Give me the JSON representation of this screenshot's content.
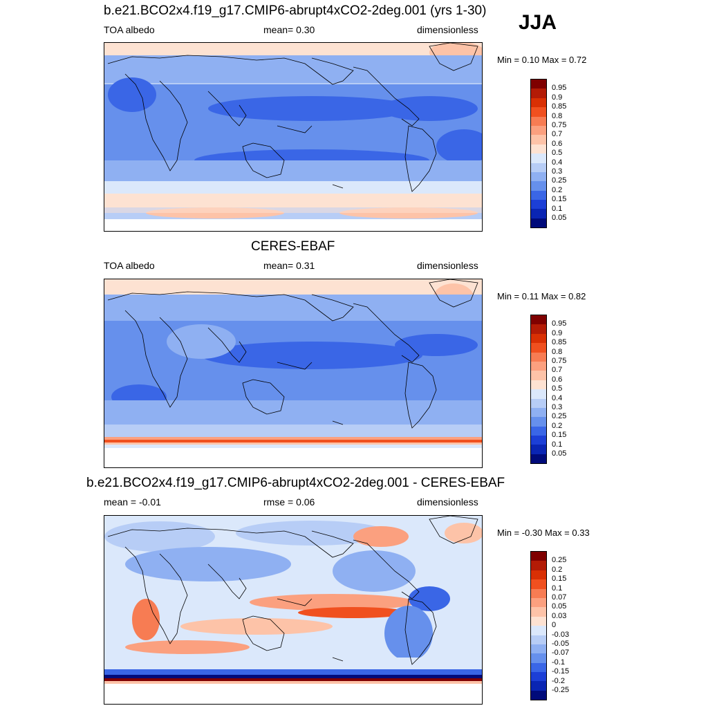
{
  "season": "JJA",
  "panels": [
    {
      "title": "b.e21.BCO2x4.f19_g17.CMIP6-abrupt4xCO2-2deg.001 (yrs 1-30)",
      "left_label": "TOA albedo",
      "center_label": "mean=   0.30",
      "right_label": "dimensionless",
      "minmax": "Min =   0.10 Max =   0.72",
      "field": "model"
    },
    {
      "title": "CERES-EBAF",
      "left_label": "TOA albedo",
      "center_label": "mean=   0.31",
      "right_label": "dimensionless",
      "minmax": "Min =   0.11 Max =   0.82",
      "field": "obs"
    },
    {
      "title": "b.e21.BCO2x4.f19_g17.CMIP6-abrupt4xCO2-2deg.001 - CERES-EBAF",
      "left_label": "mean =  -0.01",
      "center_label": "rmse =   0.06",
      "right_label": "dimensionless",
      "minmax": "Min =  -0.30 Max =   0.33",
      "field": "diff"
    }
  ],
  "colorbars": {
    "albedo": {
      "labels": [
        "0.95",
        "0.9",
        "0.85",
        "0.8",
        "0.75",
        "0.7",
        "0.6",
        "0.5",
        "0.4",
        "0.3",
        "0.25",
        "0.2",
        "0.15",
        "0.1",
        "0.05"
      ],
      "colors": [
        "#7f0000",
        "#b31b06",
        "#d93004",
        "#f0501f",
        "#f77c53",
        "#fba07f",
        "#fdc3a8",
        "#fde2d2",
        "#dbe8fb",
        "#b7cdf6",
        "#8fb0f2",
        "#6690ec",
        "#3a66e6",
        "#1c3fd6",
        "#0a25b3",
        "#000b7a"
      ]
    },
    "diff": {
      "labels": [
        "0.25",
        "0.2",
        "0.15",
        "0.1",
        "0.07",
        "0.05",
        "0.03",
        "0",
        "-0.03",
        "-0.05",
        "-0.07",
        "-0.1",
        "-0.15",
        "-0.2",
        "-0.25"
      ],
      "colors": [
        "#7f0000",
        "#b31b06",
        "#d93004",
        "#f0501f",
        "#f77c53",
        "#fba07f",
        "#fdc3a8",
        "#fde2d2",
        "#dbe8fb",
        "#b7cdf6",
        "#8fb0f2",
        "#6690ec",
        "#3a66e6",
        "#1c3fd6",
        "#0a25b3",
        "#000b7a"
      ]
    }
  },
  "chart_data": [
    {
      "type": "heatmap",
      "title": "b.e21.BCO2x4.f19_g17.CMIP6-abrupt4xCO2-2deg.001 (yrs 1-30)",
      "variable": "TOA albedo",
      "units": "dimensionless",
      "mean": 0.3,
      "min": 0.1,
      "max": 0.72,
      "levels": [
        0.05,
        0.1,
        0.15,
        0.2,
        0.25,
        0.3,
        0.4,
        0.5,
        0.6,
        0.7,
        0.75,
        0.8,
        0.85,
        0.9,
        0.95
      ]
    },
    {
      "type": "heatmap",
      "title": "CERES-EBAF",
      "variable": "TOA albedo",
      "units": "dimensionless",
      "mean": 0.31,
      "min": 0.11,
      "max": 0.82,
      "levels": [
        0.05,
        0.1,
        0.15,
        0.2,
        0.25,
        0.3,
        0.4,
        0.5,
        0.6,
        0.7,
        0.75,
        0.8,
        0.85,
        0.9,
        0.95
      ]
    },
    {
      "type": "heatmap",
      "title": "b.e21.BCO2x4.f19_g17.CMIP6-abrupt4xCO2-2deg.001 - CERES-EBAF",
      "units": "dimensionless",
      "mean": -0.01,
      "rmse": 0.06,
      "min": -0.3,
      "max": 0.33,
      "levels": [
        -0.25,
        -0.2,
        -0.15,
        -0.1,
        -0.07,
        -0.05,
        -0.03,
        0,
        0.03,
        0.05,
        0.07,
        0.1,
        0.15,
        0.2,
        0.25
      ]
    }
  ]
}
